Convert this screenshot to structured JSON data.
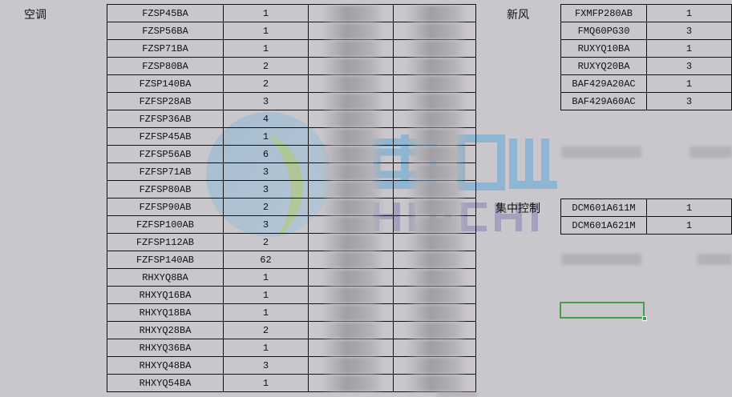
{
  "sections": {
    "aircon": {
      "label": "空调",
      "rows": [
        {
          "model": "FZSP45BA",
          "qty": "1"
        },
        {
          "model": "FZSP56BA",
          "qty": "1"
        },
        {
          "model": "FZSP71BA",
          "qty": "1"
        },
        {
          "model": "FZSP80BA",
          "qty": "2"
        },
        {
          "model": "FZSP140BA",
          "qty": "2"
        },
        {
          "model": "FZFSP28AB",
          "qty": "3"
        },
        {
          "model": "FZFSP36AB",
          "qty": "4"
        },
        {
          "model": "FZFSP45AB",
          "qty": "1"
        },
        {
          "model": "FZFSP56AB",
          "qty": "6"
        },
        {
          "model": "FZFSP71AB",
          "qty": "3"
        },
        {
          "model": "FZFSP80AB",
          "qty": "3"
        },
        {
          "model": "FZFSP90AB",
          "qty": "2"
        },
        {
          "model": "FZFSP100AB",
          "qty": "3"
        },
        {
          "model": "FZFSP112AB",
          "qty": "2"
        },
        {
          "model": "FZFSP140AB",
          "qty": "62"
        },
        {
          "model": "RHXYQ8BA",
          "qty": "1"
        },
        {
          "model": "RHXYQ16BA",
          "qty": "1"
        },
        {
          "model": "RHXYQ18BA",
          "qty": "1"
        },
        {
          "model": "RHXYQ28BA",
          "qty": "2"
        },
        {
          "model": "RHXYQ36BA",
          "qty": "1"
        },
        {
          "model": "RHXYQ48BA",
          "qty": "3"
        },
        {
          "model": "RHXYQ54BA",
          "qty": "1"
        }
      ]
    },
    "fresh_air": {
      "label": "新风",
      "rows": [
        {
          "model": "FXMFP280AB",
          "qty": "1"
        },
        {
          "model": "FMQ60PG30",
          "qty": "3"
        },
        {
          "model": "RUXYQ10BA",
          "qty": "1"
        },
        {
          "model": "RUXYQ20BA",
          "qty": "3"
        },
        {
          "model": "BAF429A20AC",
          "qty": "1"
        },
        {
          "model": "BAF429A60AC",
          "qty": "3"
        }
      ]
    },
    "central_control": {
      "label": "集中控制",
      "rows": [
        {
          "model": "DCM601A611M",
          "qty": "1"
        },
        {
          "model": "DCM601A621M",
          "qty": "1"
        }
      ]
    }
  },
  "watermark": {
    "cn": "惠驰",
    "en": "HUICHI"
  },
  "colors": {
    "background": "#c9c7cb",
    "selection": "#3fa24a",
    "logo_blue": "#5fa8d8",
    "logo_green": "#9ccc3c",
    "logo_purple": "#8a7fb8"
  }
}
